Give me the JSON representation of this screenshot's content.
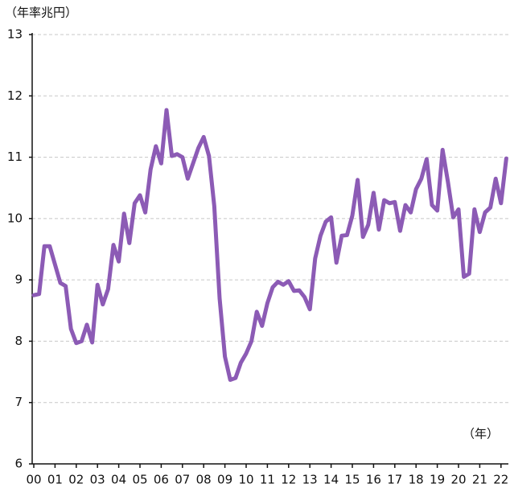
{
  "chart_data": {
    "type": "line",
    "y_axis_label": "（年率兆円）",
    "x_axis_label": "（年）",
    "categories": [
      "00",
      null,
      null,
      null,
      "01",
      null,
      null,
      null,
      "02",
      null,
      null,
      null,
      "03",
      null,
      null,
      null,
      "04",
      null,
      null,
      null,
      "05",
      null,
      null,
      null,
      "06",
      null,
      null,
      null,
      "07",
      null,
      null,
      null,
      "08",
      null,
      null,
      null,
      "09",
      null,
      null,
      null,
      "10",
      null,
      null,
      null,
      "11",
      null,
      null,
      null,
      "12",
      null,
      null,
      null,
      "13",
      null,
      null,
      null,
      "14",
      null,
      null,
      null,
      "15",
      null,
      null,
      null,
      "16",
      null,
      null,
      null,
      "17",
      null,
      null,
      null,
      "18",
      null,
      null,
      null,
      "19",
      null,
      null,
      null,
      "20",
      null,
      null,
      null,
      "21",
      null,
      null,
      null,
      "22",
      null
    ],
    "series": [
      {
        "color": "#8c5bb5",
        "values": [
          8.75,
          8.77,
          9.55,
          9.55,
          9.25,
          8.95,
          8.9,
          8.2,
          7.97,
          8.0,
          8.27,
          7.98,
          8.92,
          8.6,
          8.85,
          9.57,
          9.3,
          10.08,
          9.6,
          10.25,
          10.38,
          10.1,
          10.8,
          11.18,
          10.9,
          11.77,
          11.02,
          11.05,
          11.0,
          10.65,
          10.9,
          11.15,
          11.33,
          11.02,
          10.2,
          8.7,
          7.75,
          7.37,
          7.4,
          7.65,
          7.8,
          8.0,
          8.48,
          8.25,
          8.62,
          8.88,
          8.97,
          8.92,
          8.98,
          8.82,
          8.83,
          8.72,
          8.52,
          9.35,
          9.72,
          9.95,
          10.02,
          9.28,
          9.72,
          9.73,
          10.05,
          10.63,
          9.7,
          9.9,
          10.42,
          9.82,
          10.3,
          10.25,
          10.27,
          9.8,
          10.22,
          10.1,
          10.48,
          10.65,
          10.97,
          10.22,
          10.13,
          11.12,
          10.6,
          10.02,
          10.15,
          9.05,
          9.1,
          10.15,
          9.78,
          10.1,
          10.18,
          10.65,
          10.25,
          10.98
        ]
      }
    ],
    "ylim": [
      6,
      13
    ],
    "yticks": [
      6,
      7,
      8,
      9,
      10,
      11,
      12,
      13
    ],
    "grid": true
  }
}
